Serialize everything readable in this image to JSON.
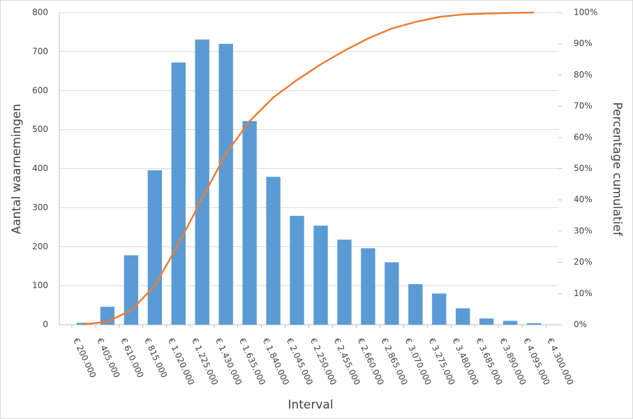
{
  "chart_data": {
    "type": "bar",
    "x_label": "Interval",
    "y_label": "Aantal waarnemingen",
    "y2_label": "Percentage cumulatief",
    "categories": [
      "€ 200.000",
      "€ 405.000",
      "€ 610.000",
      "€ 815.000",
      "€ 1.020.000",
      "€ 1.225.000",
      "€ 1.430.000",
      "€ 1.635.000",
      "€ 1.840.000",
      "€ 2.045.000",
      "€ 2.250.000",
      "€ 2.455.000",
      "€ 2.660.000",
      "€ 2.865.000",
      "€ 3.070.000",
      "€ 3.275.000",
      "€ 3.480.000",
      "€ 3.685.000",
      "€ 3.890.000",
      "€ 4.095.000",
      "€ 4.300.000"
    ],
    "series": [
      {
        "type": "bar",
        "color": "#5b9bd5",
        "values": [
          5,
          46,
          178,
          396,
          672,
          731,
          720,
          522,
          379,
          279,
          254,
          218,
          196,
          160,
          104,
          80,
          42,
          16,
          10,
          4,
          0
        ]
      },
      {
        "type": "line",
        "axis": "y2",
        "color": "#ed7d31",
        "values": [
          0.1,
          1.0,
          4.6,
          12.5,
          25.9,
          40.5,
          54.8,
          65.2,
          72.8,
          78.4,
          83.4,
          87.8,
          91.7,
          94.9,
          97.0,
          98.6,
          99.4,
          99.7,
          99.9,
          100,
          null
        ]
      }
    ],
    "ylim": [
      0,
      800
    ],
    "yticks": [
      0,
      100,
      200,
      300,
      400,
      500,
      600,
      700,
      800
    ],
    "y2lim": [
      0,
      100
    ],
    "y2ticks": [
      {
        "value": 0,
        "label": "0%"
      },
      {
        "value": 10,
        "label": "10%"
      },
      {
        "value": 20,
        "label": "20%"
      },
      {
        "value": 30,
        "label": "30%"
      },
      {
        "value": 40,
        "label": "40%"
      },
      {
        "value": 50,
        "label": "50%"
      },
      {
        "value": 60,
        "label": "60%"
      },
      {
        "value": 70,
        "label": "70%"
      },
      {
        "value": 80,
        "label": "80%"
      },
      {
        "value": 90,
        "label": "90%"
      },
      {
        "value": 100,
        "label": "100%"
      }
    ],
    "grid": true
  }
}
